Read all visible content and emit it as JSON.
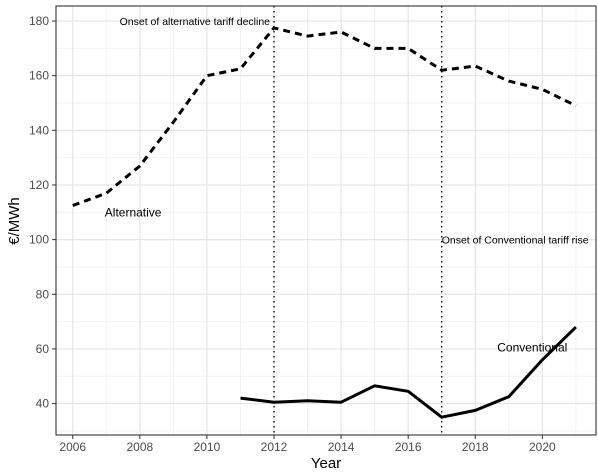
{
  "chart_data": {
    "type": "line",
    "title": "",
    "xlabel": "Year",
    "ylabel": "€/MWh",
    "xlim": [
      2005.5,
      2021.6
    ],
    "ylim": [
      28.5,
      185.5
    ],
    "x_ticks": [
      2006,
      2008,
      2010,
      2012,
      2014,
      2016,
      2018,
      2020
    ],
    "x_tick_labels": [
      "2006",
      "2008",
      "2010",
      "2012",
      "2014",
      "2016",
      "2018",
      "2020"
    ],
    "y_ticks": [
      40,
      60,
      80,
      100,
      120,
      140,
      160,
      180
    ],
    "y_tick_labels": [
      "40",
      "60",
      "80",
      "100",
      "120",
      "140",
      "160",
      "180"
    ],
    "grid": true,
    "legend": "none",
    "series": [
      {
        "name": "Alternative",
        "style": "dashed",
        "color": "#000000",
        "x": [
          2006,
          2007,
          2008,
          2009,
          2010,
          2011,
          2012,
          2013,
          2014,
          2015,
          2016,
          2017,
          2018,
          2019,
          2020,
          2021
        ],
        "values": [
          112.5,
          117,
          127,
          143,
          160,
          162.5,
          177.5,
          174.5,
          176,
          170,
          170,
          162,
          163.5,
          158,
          155,
          149
        ]
      },
      {
        "name": "Conventional",
        "style": "solid",
        "color": "#000000",
        "x": [
          2011,
          2012,
          2013,
          2014,
          2015,
          2016,
          2017,
          2018,
          2019,
          2020,
          2021
        ],
        "values": [
          42,
          40.5,
          41,
          40.5,
          46.5,
          44.5,
          35,
          37.5,
          42.5,
          56,
          68
        ]
      }
    ],
    "vlines": [
      {
        "x": 2012,
        "label": "Onset of alternative tariff decline"
      },
      {
        "x": 2017,
        "label": "Onset of Conventional tariff rise"
      }
    ],
    "annotations": [
      {
        "text": "Alternative",
        "x": 2007.8,
        "y": 108.5
      },
      {
        "text": "Conventional",
        "x": 2019.7,
        "y": 59
      }
    ]
  }
}
